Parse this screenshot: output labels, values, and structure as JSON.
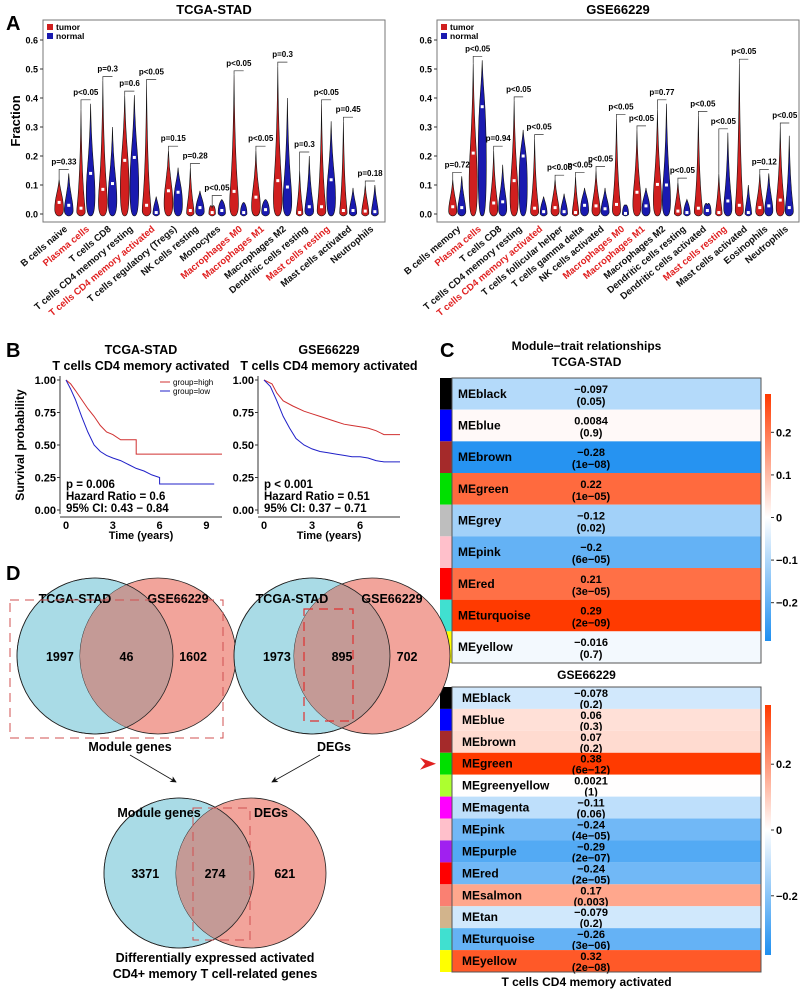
{
  "colors": {
    "tumor": "#d01f1f",
    "normal": "#1a1ab0",
    "highlight": "#e02020",
    "high_curve": "#d03030",
    "low_curve": "#2020c8",
    "venn_left": "#a9dbe6",
    "venn_right": "#f2a49b",
    "venn_overlap": "#c49a96"
  },
  "panel_labels": {
    "A": "A",
    "B": "B",
    "C": "C",
    "D": "D"
  },
  "chart_data": [
    {
      "id": "A1",
      "type": "violin",
      "title": "TCGA-STAD",
      "ylabel": "Fraction",
      "ylim": [
        0,
        0.6
      ],
      "yticks": [
        "0.0",
        "0.1",
        "0.2",
        "0.3",
        "0.4",
        "0.5",
        "0.6"
      ],
      "legend": [
        "tumor",
        "normal"
      ],
      "legend_position": "top-left",
      "categories": [
        {
          "label": "B cells naive",
          "highlight": false,
          "p": "p=0.33",
          "tumor_median": 0.04,
          "normal_median": 0.03,
          "tumor_max": 0.12,
          "normal_max": 0.14
        },
        {
          "label": "Plasma cells",
          "highlight": true,
          "p": "p<0.05",
          "tumor_median": 0.02,
          "normal_median": 0.14,
          "tumor_max": 0.36,
          "normal_max": 0.38
        },
        {
          "label": "T cells CD8",
          "highlight": false,
          "p": "p=0.3",
          "tumor_median": 0.085,
          "normal_median": 0.105,
          "tumor_max": 0.46,
          "normal_max": 0.3
        },
        {
          "label": "T cells CD4 memory resting",
          "highlight": false,
          "p": "p=0.6",
          "tumor_median": 0.185,
          "normal_median": 0.195,
          "tumor_max": 0.41,
          "normal_max": 0.41
        },
        {
          "label": "T cells CD4 memory activated",
          "highlight": true,
          "p": "p<0.05",
          "tumor_median": 0.03,
          "normal_median": 0.005,
          "tumor_max": 0.45,
          "normal_max": 0.06
        },
        {
          "label": "T cells regulatory (Tregs)",
          "highlight": false,
          "p": "p=0.15",
          "tumor_median": 0.08,
          "normal_median": 0.075,
          "tumor_max": 0.22,
          "normal_max": 0.16
        },
        {
          "label": "NK cells resting",
          "highlight": false,
          "p": "p=0.28",
          "tumor_median": 0.012,
          "normal_median": 0.022,
          "tumor_max": 0.16,
          "normal_max": 0.08
        },
        {
          "label": "Monocytes",
          "highlight": false,
          "p": "p<0.05",
          "tumor_median": 0.005,
          "normal_median": 0.012,
          "tumor_max": 0.02,
          "normal_max": 0.05
        },
        {
          "label": "Macrophages M0",
          "highlight": true,
          "p": "p<0.05",
          "tumor_median": 0.078,
          "normal_median": 0.005,
          "tumor_max": 0.48,
          "normal_max": 0.04
        },
        {
          "label": "Macrophages M1",
          "highlight": true,
          "p": "p<0.05",
          "tumor_median": 0.058,
          "normal_median": 0.015,
          "tumor_max": 0.22,
          "normal_max": 0.05
        },
        {
          "label": "Macrophages M2",
          "highlight": false,
          "p": "p=0.3",
          "tumor_median": 0.115,
          "normal_median": 0.093,
          "tumor_max": 0.51,
          "normal_max": 0.4
        },
        {
          "label": "Dendritic cells resting",
          "highlight": false,
          "p": "p=0.3",
          "tumor_median": 0.005,
          "normal_median": 0.025,
          "tumor_max": 0.15,
          "normal_max": 0.2
        },
        {
          "label": "Mast cells resting",
          "highlight": true,
          "p": "p<0.05",
          "tumor_median": 0.025,
          "normal_median": 0.118,
          "tumor_max": 0.38,
          "normal_max": 0.32
        },
        {
          "label": "Mast cells activated",
          "highlight": false,
          "p": "p=0.45",
          "tumor_median": 0.012,
          "normal_median": 0.012,
          "tumor_max": 0.32,
          "normal_max": 0.09
        },
        {
          "label": "Neutrophils",
          "highlight": false,
          "p": "p=0.18",
          "tumor_median": 0.01,
          "normal_median": 0.008,
          "tumor_max": 0.1,
          "normal_max": 0.1
        }
      ]
    },
    {
      "id": "A2",
      "type": "violin",
      "title": "GSE66229",
      "ylabel": "",
      "ylim": [
        0,
        0.6
      ],
      "yticks": [
        "0.0",
        "0.1",
        "0.2",
        "0.3",
        "0.4",
        "0.5",
        "0.6"
      ],
      "legend": [
        "tumor",
        "normal"
      ],
      "legend_position": "top-left",
      "categories": [
        {
          "label": "B cells memory",
          "highlight": false,
          "p": "p=0.72",
          "tumor_median": 0.025,
          "normal_median": 0.022,
          "tumor_max": 0.12,
          "normal_max": 0.13
        },
        {
          "label": "Plasma cells",
          "highlight": true,
          "p": "p<0.05",
          "tumor_median": 0.21,
          "normal_median": 0.37,
          "tumor_max": 0.52,
          "normal_max": 0.53
        },
        {
          "label": "T cells CD8",
          "highlight": false,
          "p": "p=0.94",
          "tumor_median": 0.038,
          "normal_median": 0.042,
          "tumor_max": 0.22,
          "normal_max": 0.17
        },
        {
          "label": "T cells CD4 memory resting",
          "highlight": false,
          "p": "p<0.05",
          "tumor_median": 0.115,
          "normal_median": 0.2,
          "tumor_max": 0.39,
          "normal_max": 0.29
        },
        {
          "label": "T cells CD4 memory activated",
          "highlight": true,
          "p": "p<0.05",
          "tumor_median": 0.02,
          "normal_median": 0.008,
          "tumor_max": 0.26,
          "normal_max": 0.06
        },
        {
          "label": "T cells follicular helper",
          "highlight": false,
          "p": "p<0.05",
          "tumor_median": 0.022,
          "normal_median": 0.008,
          "tumor_max": 0.12,
          "normal_max": 0.07
        },
        {
          "label": "T cells gamma delta",
          "highlight": false,
          "p": "p<0.05",
          "tumor_median": 0.005,
          "normal_median": 0.03,
          "tumor_max": 0.13,
          "normal_max": 0.09
        },
        {
          "label": "NK cells activated",
          "highlight": false,
          "p": "p<0.05",
          "tumor_median": 0.028,
          "normal_median": 0.018,
          "tumor_max": 0.15,
          "normal_max": 0.09
        },
        {
          "label": "Macrophages M0",
          "highlight": true,
          "p": "p<0.05",
          "tumor_median": 0.033,
          "normal_median": 0.002,
          "tumor_max": 0.33,
          "normal_max": 0.03
        },
        {
          "label": "Macrophages M1",
          "highlight": true,
          "p": "p<0.05",
          "tumor_median": 0.075,
          "normal_median": 0.028,
          "tumor_max": 0.29,
          "normal_max": 0.09
        },
        {
          "label": "Macrophages M2",
          "highlight": false,
          "p": "p=0.77",
          "tumor_median": 0.102,
          "normal_median": 0.1,
          "tumor_max": 0.36,
          "normal_max": 0.38
        },
        {
          "label": "Dendritic cells resting",
          "highlight": false,
          "p": "p<0.05",
          "tumor_median": 0.01,
          "normal_median": 0.005,
          "tumor_max": 0.11,
          "normal_max": 0.05
        },
        {
          "label": "Dendritic cells activated",
          "highlight": false,
          "p": "p<0.05",
          "tumor_median": 0.02,
          "normal_median": 0.012,
          "tumor_max": 0.34,
          "normal_max": 0.03
        },
        {
          "label": "Mast cells resting",
          "highlight": true,
          "p": "p<0.05",
          "tumor_median": 0.005,
          "normal_median": 0.045,
          "tumor_max": 0.14,
          "normal_max": 0.28
        },
        {
          "label": "Mast cells activated",
          "highlight": false,
          "p": "p<0.05",
          "tumor_median": 0.03,
          "normal_median": 0.005,
          "tumor_max": 0.52,
          "normal_max": 0.1
        },
        {
          "label": "Eosinophils",
          "highlight": false,
          "p": "p=0.12",
          "tumor_median": 0.022,
          "normal_median": 0.028,
          "tumor_max": 0.14,
          "normal_max": 0.14
        },
        {
          "label": "Neutrophils",
          "highlight": false,
          "p": "p<0.05",
          "tumor_median": 0.048,
          "normal_median": 0.022,
          "tumor_max": 0.3,
          "normal_max": 0.27
        }
      ]
    },
    {
      "id": "B1",
      "type": "line",
      "title": "TCGA-STAD",
      "subtitle": "T cells CD4 memory activated",
      "xlabel": "Time (years)",
      "ylabel": "Survival probability",
      "xlim": [
        0,
        10
      ],
      "ylim": [
        0,
        1
      ],
      "xticks": [
        "0",
        "3",
        "6",
        "9"
      ],
      "yticks": [
        "0.00",
        "0.25",
        "0.50",
        "0.75",
        "1.00"
      ],
      "legend": [
        "group=high",
        "group=low"
      ],
      "legend_position": "top-right",
      "annotations": [
        "p = 0.006",
        "Hazard Ratio = 0.6",
        "95% CI: 0.43 − 0.84"
      ],
      "series": [
        {
          "name": "group=high",
          "x": [
            0,
            0.3,
            0.6,
            1,
            1.4,
            1.8,
            2.2,
            2.6,
            3,
            3.5,
            4,
            4.5,
            4.5,
            10
          ],
          "y": [
            1,
            0.97,
            0.92,
            0.85,
            0.78,
            0.72,
            0.65,
            0.6,
            0.58,
            0.54,
            0.54,
            0.54,
            0.43,
            0.43
          ]
        },
        {
          "name": "group=low",
          "x": [
            0,
            0.3,
            0.6,
            1,
            1.4,
            1.8,
            2.2,
            2.6,
            3,
            3.5,
            4,
            4.5,
            5,
            5.5,
            6,
            6,
            9.5
          ],
          "y": [
            1,
            0.93,
            0.85,
            0.72,
            0.6,
            0.5,
            0.45,
            0.42,
            0.4,
            0.38,
            0.35,
            0.32,
            0.3,
            0.27,
            0.25,
            0.2,
            0.2
          ]
        }
      ]
    },
    {
      "id": "B2",
      "type": "line",
      "title": "GSE66229",
      "subtitle": "T cells CD4 memory activated",
      "xlabel": "Time (years)",
      "ylabel": "",
      "xlim": [
        0,
        8.5
      ],
      "ylim": [
        0,
        1
      ],
      "xticks": [
        "0",
        "3",
        "6"
      ],
      "yticks": [
        "0.00",
        "0.25",
        "0.50",
        "0.75",
        "1.00"
      ],
      "annotations": [
        "p < 0.001",
        "Hazard Ratio = 0.51",
        "95% CI: 0.37 − 0.71"
      ],
      "series": [
        {
          "name": "group=high",
          "x": [
            0,
            0.5,
            0.8,
            1.2,
            1.8,
            2.5,
            3,
            3.5,
            4,
            4.5,
            5,
            5.5,
            6,
            6.5,
            7,
            7.5,
            8.5
          ],
          "y": [
            1,
            0.97,
            0.9,
            0.84,
            0.8,
            0.76,
            0.74,
            0.72,
            0.7,
            0.68,
            0.66,
            0.65,
            0.64,
            0.63,
            0.61,
            0.58,
            0.58
          ]
        },
        {
          "name": "group=low",
          "x": [
            0,
            0.4,
            0.8,
            1.2,
            1.6,
            2,
            2.5,
            3,
            3.5,
            4,
            4.5,
            5,
            5.5,
            6,
            6.5,
            7,
            7.5,
            8.5
          ],
          "y": [
            1,
            0.95,
            0.84,
            0.72,
            0.63,
            0.55,
            0.5,
            0.47,
            0.45,
            0.44,
            0.43,
            0.42,
            0.41,
            0.41,
            0.4,
            0.38,
            0.37,
            0.37
          ]
        }
      ]
    },
    {
      "id": "C1",
      "type": "heatmap",
      "title": "Module−trait relationships",
      "subtitle": "TCGA-STAD",
      "colorbar_ticks": [
        "0.2",
        "0.1",
        "0",
        "−0.1",
        "−0.2"
      ],
      "colorbar_range": [
        -0.29,
        0.29
      ],
      "rows": [
        {
          "module": "MEblack",
          "color": "#000000",
          "value": -0.097,
          "value_label": "−0.097",
          "p": "(0.05)"
        },
        {
          "module": "MEblue",
          "color": "#0000ff",
          "value": 0.0084,
          "value_label": "0.0084",
          "p": "(0.9)"
        },
        {
          "module": "MEbrown",
          "color": "#a52a2a",
          "value": -0.28,
          "value_label": "−0.28",
          "p": "(1e−08)"
        },
        {
          "module": "MEgreen",
          "color": "#00e000",
          "value": 0.22,
          "value_label": "0.22",
          "p": "(1e−05)"
        },
        {
          "module": "MEgrey",
          "color": "#bebebe",
          "value": -0.12,
          "value_label": "−0.12",
          "p": "(0.02)"
        },
        {
          "module": "MEpink",
          "color": "#ffc0cb",
          "value": -0.2,
          "value_label": "−0.2",
          "p": "(6e−05)"
        },
        {
          "module": "MEred",
          "color": "#ff0000",
          "value": 0.21,
          "value_label": "0.21",
          "p": "(3e−05)"
        },
        {
          "module": "MEturquoise",
          "color": "#40e0d0",
          "value": 0.29,
          "value_label": "0.29",
          "p": "(2e−09)",
          "arrow": true
        },
        {
          "module": "MEyellow",
          "color": "#ffff00",
          "value": -0.016,
          "value_label": "−0.016",
          "p": "(0.7)"
        }
      ]
    },
    {
      "id": "C2",
      "type": "heatmap",
      "title": "GSE66229",
      "xlabel": "T cells CD4 memory activated",
      "colorbar_ticks": [
        "0.2",
        "0",
        "−0.2"
      ],
      "colorbar_range": [
        -0.38,
        0.38
      ],
      "rows": [
        {
          "module": "MEblack",
          "color": "#000000",
          "value": -0.078,
          "value_label": "−0.078",
          "p": "(0.2)"
        },
        {
          "module": "MEblue",
          "color": "#0000ff",
          "value": 0.06,
          "value_label": "0.06",
          "p": "(0.3)"
        },
        {
          "module": "MEbrown",
          "color": "#a52a2a",
          "value": 0.07,
          "value_label": "0.07",
          "p": "(0.2)"
        },
        {
          "module": "MEgreen",
          "color": "#00e000",
          "value": 0.38,
          "value_label": "0.38",
          "p": "(6e−12)",
          "arrow": true
        },
        {
          "module": "MEgreenyellow",
          "color": "#adff2f",
          "value": 0.0021,
          "value_label": "0.0021",
          "p": "(1)"
        },
        {
          "module": "MEmagenta",
          "color": "#ff00ff",
          "value": -0.11,
          "value_label": "−0.11",
          "p": "(0.06)"
        },
        {
          "module": "MEpink",
          "color": "#ffc0cb",
          "value": -0.24,
          "value_label": "−0.24",
          "p": "(4e−05)"
        },
        {
          "module": "MEpurple",
          "color": "#a020f0",
          "value": -0.29,
          "value_label": "−0.29",
          "p": "(2e−07)"
        },
        {
          "module": "MEred",
          "color": "#ff0000",
          "value": -0.24,
          "value_label": "−0.24",
          "p": "(2e−05)"
        },
        {
          "module": "MEsalmon",
          "color": "#fa8072",
          "value": 0.17,
          "value_label": "0.17",
          "p": "(0.003)"
        },
        {
          "module": "MEtan",
          "color": "#d2b48c",
          "value": -0.079,
          "value_label": "−0.079",
          "p": "(0.2)"
        },
        {
          "module": "MEturquoise",
          "color": "#40e0d0",
          "value": -0.26,
          "value_label": "−0.26",
          "p": "(3e−06)"
        },
        {
          "module": "MEyellow",
          "color": "#ffff00",
          "value": 0.32,
          "value_label": "0.32",
          "p": "(2e−08)"
        }
      ]
    },
    {
      "id": "D",
      "type": "venn",
      "diagrams": [
        {
          "left_label": "TCGA-STAD",
          "right_label": "GSE66229",
          "left_only": 1997,
          "overlap": 46,
          "right_only": 1602,
          "caption": "Module genes"
        },
        {
          "left_label": "TCGA-STAD",
          "right_label": "GSE66229",
          "left_only": 1973,
          "overlap": 895,
          "right_only": 702,
          "caption": "DEGs"
        },
        {
          "left_label": "Module genes",
          "right_label": "DEGs",
          "left_only": 3371,
          "overlap": 274,
          "right_only": 621,
          "caption": "Differentially expressed activated\nCD4+ memory T cell-related genes"
        }
      ]
    }
  ]
}
